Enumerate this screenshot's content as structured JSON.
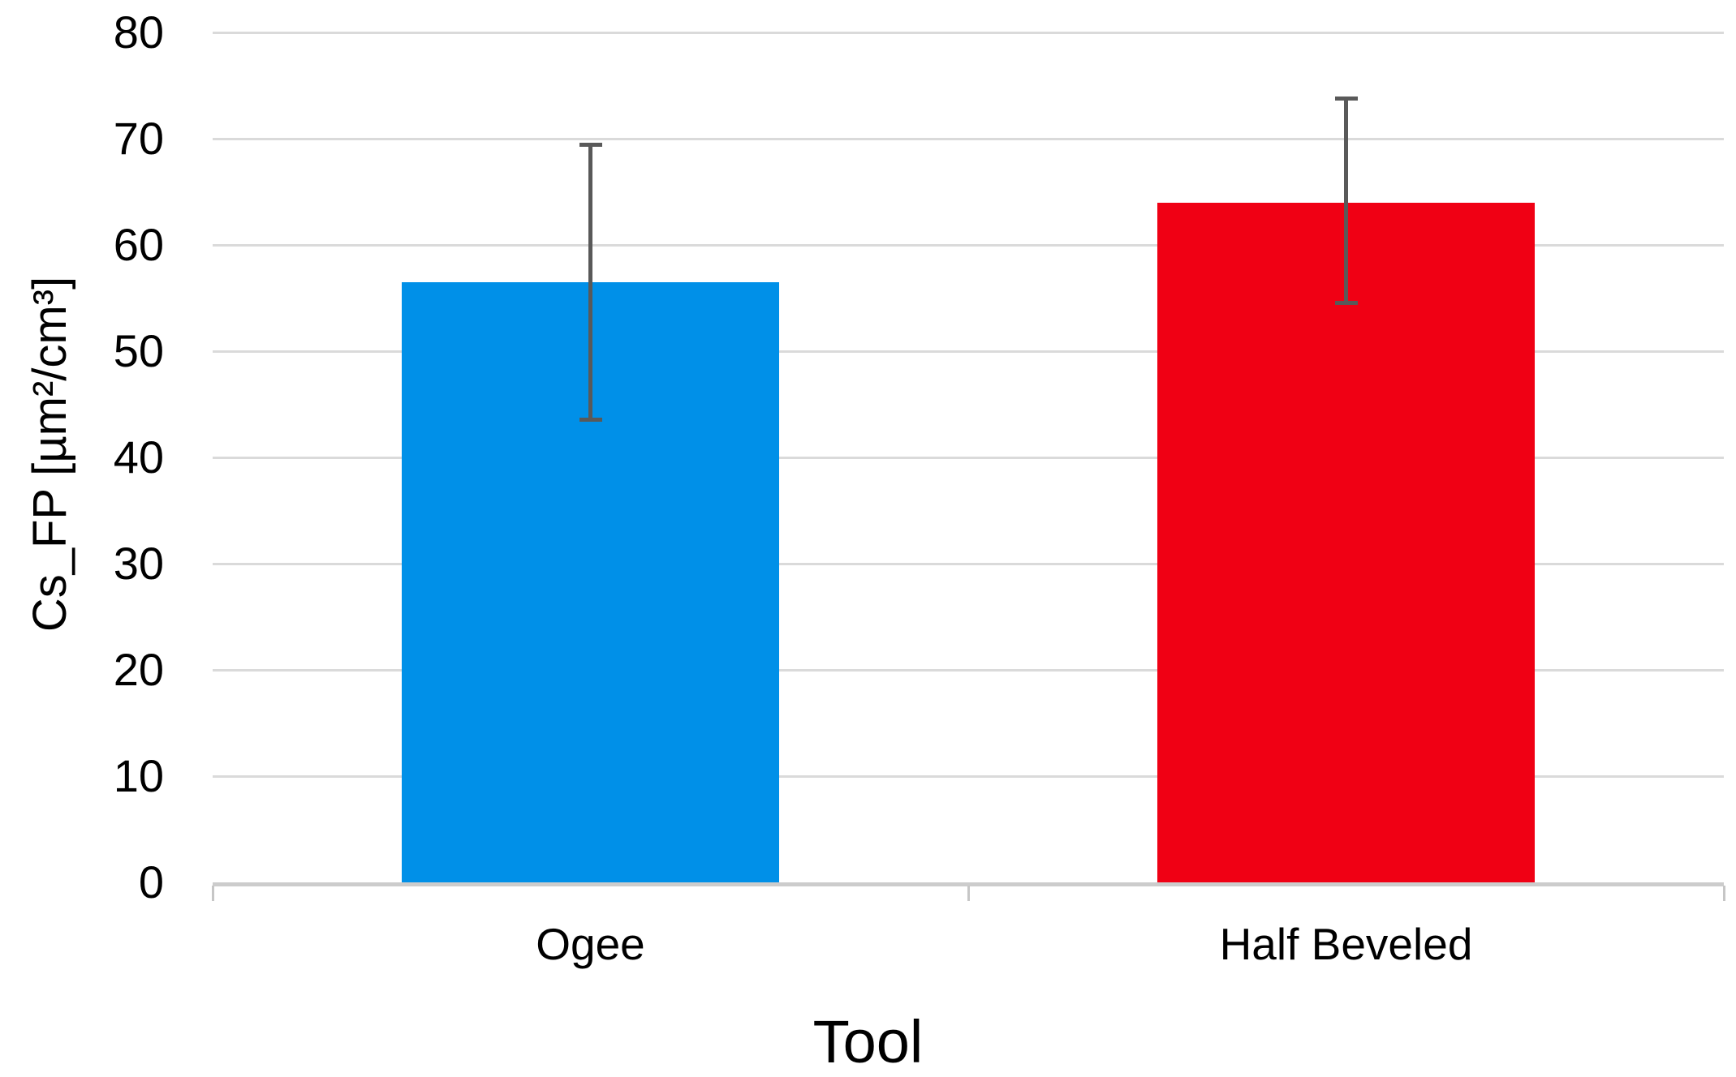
{
  "figure": {
    "background": "#ffffff",
    "text_color": "#000000"
  },
  "chart_data": {
    "type": "bar",
    "title": "",
    "xlabel": "Tool",
    "ylabel": "Cs_FP [µm²/cm³]",
    "categories": [
      "Ogee",
      "Half Beveled"
    ],
    "series": [
      {
        "name": "Cs_FP",
        "values": [
          56.5,
          64.0
        ],
        "colors": [
          "#0090E8",
          "#F00014"
        ],
        "error_low": [
          43.5,
          54.5
        ],
        "error_high": [
          69.5,
          73.8
        ]
      }
    ],
    "ylim": [
      0,
      80
    ],
    "yticks": [
      0,
      10,
      20,
      30,
      40,
      50,
      60,
      70,
      80
    ],
    "grid": true,
    "legend": "none",
    "gridline_color": "#dadada",
    "axis_line_color": "#cccccc",
    "error_bar_color": "#595959"
  }
}
